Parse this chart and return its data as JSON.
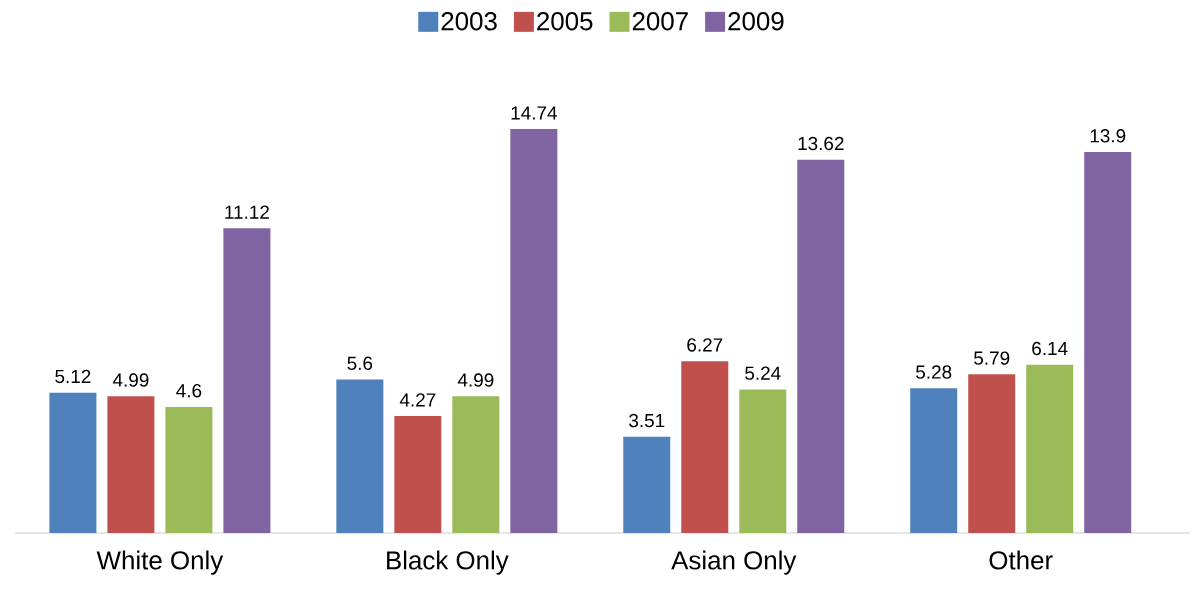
{
  "chart_data": {
    "type": "bar",
    "categories": [
      "White Only",
      "Black Only",
      "Asian Only",
      "Other"
    ],
    "series": [
      {
        "name": "2003",
        "color": "#4f81bd",
        "values": [
          5.12,
          5.6,
          3.51,
          5.28
        ]
      },
      {
        "name": "2005",
        "color": "#c0504d",
        "values": [
          4.99,
          4.27,
          6.27,
          5.79
        ]
      },
      {
        "name": "2007",
        "color": "#9bbb59",
        "values": [
          4.6,
          4.99,
          5.24,
          6.14
        ]
      },
      {
        "name": "2009",
        "color": "#8064a2",
        "values": [
          11.12,
          14.74,
          13.62,
          13.9
        ]
      }
    ],
    "data_labels": true,
    "legend": "top"
  }
}
